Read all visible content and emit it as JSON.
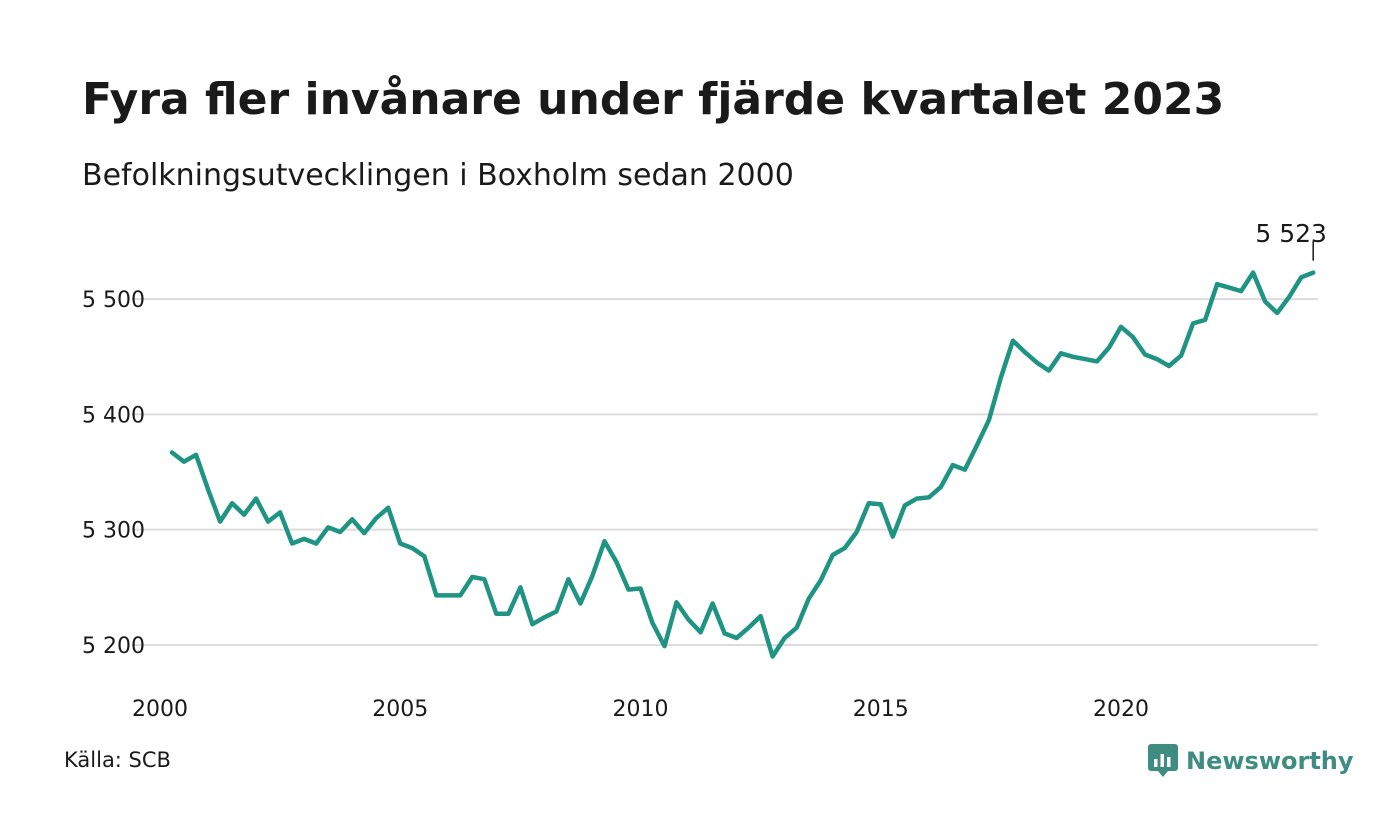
{
  "title": "Fyra fler invånare under fjärde kvartalet 2023",
  "subtitle": "Befolkningsutvecklingen i Boxholm sedan 2000",
  "source": "Källa: SCB",
  "brand": {
    "name": "Newsworthy",
    "icon": "newsworthy-logo-icon"
  },
  "colors": {
    "line": "#1f9483",
    "grid": "#dcdcdc",
    "text": "#1a1a1a",
    "brand": "#3e8d80"
  },
  "chart_data": {
    "type": "line",
    "title": "Fyra fler invånare under fjärde kvartalet 2023",
    "subtitle": "Befolkningsutvecklingen i Boxholm sedan 2000",
    "xlabel": "",
    "ylabel": "",
    "xlim": [
      2000,
      2024.1
    ],
    "ylim": [
      5180,
      5560
    ],
    "x_ticks": [
      2000,
      2005,
      2010,
      2015,
      2020
    ],
    "x_tick_labels": [
      "2000",
      "2005",
      "2010",
      "2015",
      "2020"
    ],
    "y_ticks": [
      5200,
      5300,
      5400,
      5500
    ],
    "y_tick_labels": [
      "5 200",
      "5 300",
      "5 400",
      "5 500"
    ],
    "grid": "horizontal",
    "last_value_label": "5 523",
    "series": [
      {
        "values": [
          [
            2000.25,
            5367
          ],
          [
            2000.5,
            5359
          ],
          [
            2000.75,
            5365
          ],
          [
            2001.0,
            5335
          ],
          [
            2001.25,
            5307
          ],
          [
            2001.5,
            5323
          ],
          [
            2001.75,
            5313
          ],
          [
            2002.0,
            5327
          ],
          [
            2002.25,
            5307
          ],
          [
            2002.5,
            5315
          ],
          [
            2002.75,
            5288
          ],
          [
            2003.0,
            5292
          ],
          [
            2003.25,
            5288
          ],
          [
            2003.5,
            5302
          ],
          [
            2003.75,
            5298
          ],
          [
            2004.0,
            5309
          ],
          [
            2004.25,
            5297
          ],
          [
            2004.5,
            5310
          ],
          [
            2004.75,
            5319
          ],
          [
            2005.0,
            5288
          ],
          [
            2005.25,
            5284
          ],
          [
            2005.5,
            5277
          ],
          [
            2005.75,
            5243
          ],
          [
            2006.0,
            5243
          ],
          [
            2006.25,
            5243
          ],
          [
            2006.5,
            5259
          ],
          [
            2006.75,
            5257
          ],
          [
            2007.0,
            5227
          ],
          [
            2007.25,
            5227
          ],
          [
            2007.5,
            5250
          ],
          [
            2007.75,
            5218
          ],
          [
            2008.0,
            5224
          ],
          [
            2008.25,
            5229
          ],
          [
            2008.5,
            5257
          ],
          [
            2008.75,
            5236
          ],
          [
            2009.0,
            5260
          ],
          [
            2009.25,
            5290
          ],
          [
            2009.5,
            5272
          ],
          [
            2009.75,
            5248
          ],
          [
            2010.0,
            5249
          ],
          [
            2010.25,
            5219
          ],
          [
            2010.5,
            5199
          ],
          [
            2010.75,
            5237
          ],
          [
            2011.0,
            5222
          ],
          [
            2011.25,
            5211
          ],
          [
            2011.5,
            5236
          ],
          [
            2011.75,
            5210
          ],
          [
            2012.0,
            5206
          ],
          [
            2012.25,
            5215
          ],
          [
            2012.5,
            5225
          ],
          [
            2012.75,
            5190
          ],
          [
            2013.0,
            5206
          ],
          [
            2013.25,
            5215
          ],
          [
            2013.5,
            5240
          ],
          [
            2013.75,
            5256
          ],
          [
            2014.0,
            5278
          ],
          [
            2014.25,
            5284
          ],
          [
            2014.5,
            5298
          ],
          [
            2014.75,
            5323
          ],
          [
            2015.0,
            5322
          ],
          [
            2015.25,
            5294
          ],
          [
            2015.5,
            5321
          ],
          [
            2015.75,
            5327
          ],
          [
            2016.0,
            5328
          ],
          [
            2016.25,
            5337
          ],
          [
            2016.5,
            5356
          ],
          [
            2016.75,
            5352
          ],
          [
            2017.0,
            5373
          ],
          [
            2017.25,
            5395
          ],
          [
            2017.5,
            5432
          ],
          [
            2017.75,
            5464
          ],
          [
            2018.0,
            5454
          ],
          [
            2018.25,
            5445
          ],
          [
            2018.5,
            5438
          ],
          [
            2018.75,
            5453
          ],
          [
            2019.0,
            5450
          ],
          [
            2019.25,
            5448
          ],
          [
            2019.5,
            5446
          ],
          [
            2019.75,
            5458
          ],
          [
            2020.0,
            5476
          ],
          [
            2020.25,
            5467
          ],
          [
            2020.5,
            5452
          ],
          [
            2020.75,
            5448
          ],
          [
            2021.0,
            5442
          ],
          [
            2021.25,
            5451
          ],
          [
            2021.5,
            5479
          ],
          [
            2021.75,
            5482
          ],
          [
            2022.0,
            5513
          ],
          [
            2022.25,
            5510
          ],
          [
            2022.5,
            5507
          ],
          [
            2022.75,
            5523
          ],
          [
            2023.0,
            5498
          ],
          [
            2023.25,
            5488
          ],
          [
            2023.5,
            5502
          ],
          [
            2023.75,
            5519
          ],
          [
            2024.0,
            5523
          ]
        ]
      }
    ]
  }
}
